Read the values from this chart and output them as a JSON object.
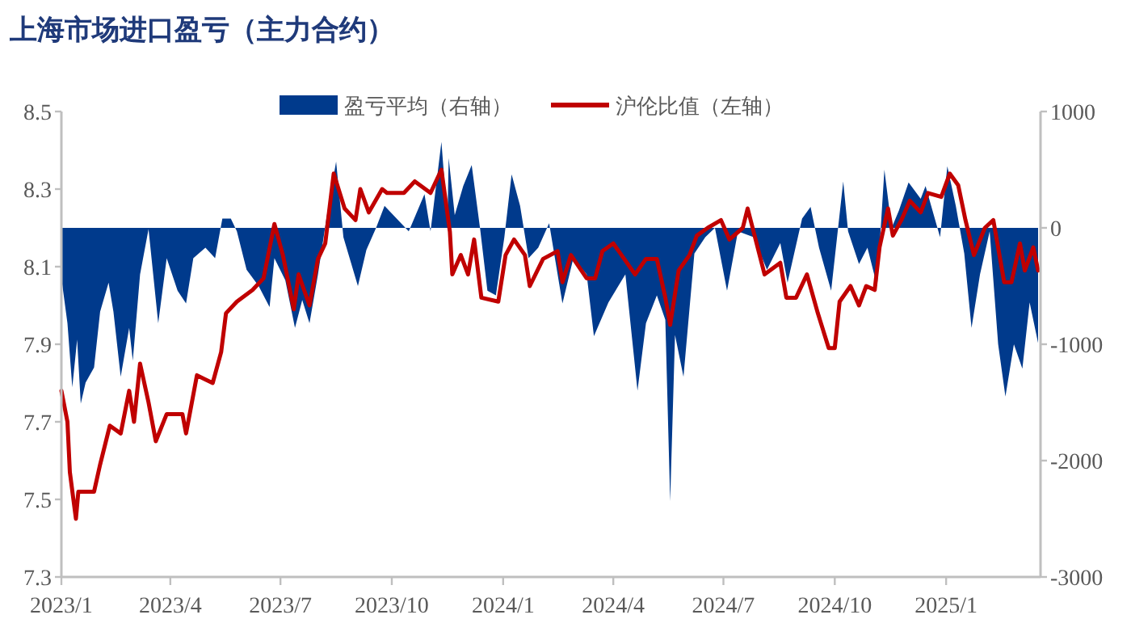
{
  "chart_data": {
    "type": "line",
    "title": "上海市场进口盈亏（主力合约）",
    "legend": "top",
    "xlim": [
      "2023-01-01",
      "2025-03-20"
    ],
    "xticks": [
      {
        "value": "2023-01-01",
        "label": "2023/1"
      },
      {
        "value": "2023-04-01",
        "label": "2023/4"
      },
      {
        "value": "2023-07-01",
        "label": "2023/7"
      },
      {
        "value": "2023-10-01",
        "label": "2023/10"
      },
      {
        "value": "2024-01-01",
        "label": "2024/1"
      },
      {
        "value": "2024-04-01",
        "label": "2024/4"
      },
      {
        "value": "2024-07-01",
        "label": "2024/7"
      },
      {
        "value": "2024-10-01",
        "label": "2024/10"
      },
      {
        "value": "2025-01-01",
        "label": "2025/1"
      }
    ],
    "ylim": [
      7.3,
      8.5
    ],
    "yticks": [
      {
        "value": 7.3,
        "label": "7.3"
      },
      {
        "value": 7.5,
        "label": "7.5"
      },
      {
        "value": 7.7,
        "label": "7.7"
      },
      {
        "value": 7.9,
        "label": "7.9"
      },
      {
        "value": 8.1,
        "label": "8.1"
      },
      {
        "value": 8.3,
        "label": "8.3"
      },
      {
        "value": 8.5,
        "label": "8.5"
      }
    ],
    "y2lim": [
      -3000,
      1000
    ],
    "y2ticks": [
      -3000,
      -2000,
      -1000,
      0,
      1000
    ],
    "series": [
      {
        "name": "盈亏平均（右轴）",
        "type": "area",
        "axis": "y2",
        "color": "#003a8c",
        "x": [
          "2023-01-01",
          "2023-01-06",
          "2023-01-10",
          "2023-01-14",
          "2023-01-17",
          "2023-01-21",
          "2023-01-28",
          "2023-02-02",
          "2023-02-09",
          "2023-02-13",
          "2023-02-19",
          "2023-02-26",
          "2023-03-01",
          "2023-03-07",
          "2023-03-14",
          "2023-03-22",
          "2023-03-29",
          "2023-04-07",
          "2023-04-14",
          "2023-04-20",
          "2023-04-30",
          "2023-05-08",
          "2023-05-14",
          "2023-05-21",
          "2023-05-26",
          "2023-06-03",
          "2023-06-13",
          "2023-06-22",
          "2023-06-26",
          "2023-07-05",
          "2023-07-13",
          "2023-07-19",
          "2023-07-25",
          "2023-08-01",
          "2023-08-09",
          "2023-08-16",
          "2023-08-22",
          "2023-09-03",
          "2023-09-10",
          "2023-09-18",
          "2023-09-25",
          "2023-10-15",
          "2023-10-28",
          "2023-11-02",
          "2023-11-11",
          "2023-11-16",
          "2023-11-17",
          "2023-11-22",
          "2023-11-29",
          "2023-12-06",
          "2023-12-13",
          "2023-12-19",
          "2023-12-26",
          "2024-01-02",
          "2024-01-08",
          "2024-01-15",
          "2024-01-22",
          "2024-01-30",
          "2024-02-08",
          "2024-02-19",
          "2024-02-28",
          "2024-03-10",
          "2024-03-16",
          "2024-03-28",
          "2024-04-11",
          "2024-04-21",
          "2024-04-28",
          "2024-05-07",
          "2024-05-14",
          "2024-05-18",
          "2024-05-22",
          "2024-05-29",
          "2024-06-07",
          "2024-06-16",
          "2024-06-24",
          "2024-07-04",
          "2024-07-13",
          "2024-07-26",
          "2024-08-06",
          "2024-08-17",
          "2024-08-23",
          "2024-09-04",
          "2024-09-11",
          "2024-09-18",
          "2024-09-28",
          "2024-10-08",
          "2024-10-12",
          "2024-10-21",
          "2024-10-28",
          "2024-11-05",
          "2024-11-11",
          "2024-11-17",
          "2024-11-23",
          "2024-12-01",
          "2024-12-11",
          "2024-12-15",
          "2024-12-27",
          "2025-01-02",
          "2025-01-09",
          "2025-01-16",
          "2025-01-22",
          "2025-01-29",
          "2025-02-06",
          "2025-02-13",
          "2025-02-19",
          "2025-02-26",
          "2025-03-05",
          "2025-03-11",
          "2025-03-18"
        ],
        "values": [
          -430,
          -820,
          -1370,
          -960,
          -1510,
          -1330,
          -1200,
          -720,
          -470,
          -720,
          -1280,
          -860,
          -1140,
          -400,
          -10,
          -820,
          -260,
          -540,
          -650,
          -260,
          -170,
          -260,
          80,
          80,
          -30,
          -360,
          -500,
          -680,
          -260,
          -450,
          -860,
          -620,
          -820,
          -400,
          150,
          570,
          -80,
          -500,
          -190,
          0,
          190,
          -30,
          290,
          -30,
          740,
          60,
          600,
          110,
          360,
          540,
          -10,
          -540,
          -580,
          -80,
          460,
          190,
          -260,
          -170,
          40,
          -650,
          -260,
          -400,
          -930,
          -640,
          -400,
          -1400,
          -820,
          -580,
          -790,
          -2350,
          -920,
          -1280,
          -220,
          -80,
          0,
          -540,
          -30,
          -80,
          -360,
          -130,
          -470,
          80,
          180,
          -170,
          -540,
          400,
          -30,
          -310,
          -170,
          -500,
          500,
          0,
          150,
          390,
          250,
          360,
          -80,
          530,
          190,
          -220,
          -860,
          -400,
          -30,
          -1000,
          -1450,
          -1000,
          -1210,
          -640,
          -990
        ]
      },
      {
        "name": "沪伦比值（左轴）",
        "type": "line",
        "color": "#c00000",
        "x": [
          "2023-01-01",
          "2023-01-06",
          "2023-01-08",
          "2023-01-13",
          "2023-01-15",
          "2023-01-28",
          "2023-02-02",
          "2023-02-10",
          "2023-02-19",
          "2023-02-26",
          "2023-03-02",
          "2023-03-07",
          "2023-03-14",
          "2023-03-20",
          "2023-03-29",
          "2023-04-11",
          "2023-04-14",
          "2023-04-23",
          "2023-05-06",
          "2023-05-13",
          "2023-05-17",
          "2023-05-26",
          "2023-06-08",
          "2023-06-17",
          "2023-06-26",
          "2023-07-03",
          "2023-07-12",
          "2023-07-16",
          "2023-07-25",
          "2023-08-01",
          "2023-08-07",
          "2023-08-14",
          "2023-08-23",
          "2023-09-01",
          "2023-09-05",
          "2023-09-12",
          "2023-09-23",
          "2023-09-27",
          "2023-10-11",
          "2023-10-20",
          "2023-11-02",
          "2023-11-11",
          "2023-11-18",
          "2023-11-20",
          "2023-11-27",
          "2023-12-03",
          "2023-12-08",
          "2023-12-14",
          "2023-12-28",
          "2024-01-03",
          "2024-01-10",
          "2024-01-19",
          "2024-01-23",
          "2024-02-03",
          "2024-02-15",
          "2024-02-19",
          "2024-02-26",
          "2024-03-10",
          "2024-03-17",
          "2024-03-23",
          "2024-04-01",
          "2024-04-10",
          "2024-04-19",
          "2024-04-28",
          "2024-05-07",
          "2024-05-14",
          "2024-05-18",
          "2024-05-25",
          "2024-06-03",
          "2024-06-09",
          "2024-06-18",
          "2024-06-29",
          "2024-07-06",
          "2024-07-17",
          "2024-07-21",
          "2024-08-04",
          "2024-08-17",
          "2024-08-22",
          "2024-08-30",
          "2024-09-08",
          "2024-09-17",
          "2024-09-26",
          "2024-10-01",
          "2024-10-05",
          "2024-10-14",
          "2024-10-21",
          "2024-10-27",
          "2024-11-03",
          "2024-11-07",
          "2024-11-14",
          "2024-11-18",
          "2024-11-25",
          "2024-12-02",
          "2024-12-11",
          "2024-12-17",
          "2024-12-28",
          "2025-01-04",
          "2025-01-11",
          "2025-01-17",
          "2025-01-24",
          "2025-02-02",
          "2025-02-09",
          "2025-02-18",
          "2025-02-24",
          "2025-03-03",
          "2025-03-07",
          "2025-03-14",
          "2025-03-18"
        ],
        "values": [
          7.78,
          7.7,
          7.57,
          7.45,
          7.52,
          7.52,
          7.59,
          7.69,
          7.67,
          7.78,
          7.7,
          7.85,
          7.75,
          7.65,
          7.72,
          7.72,
          7.67,
          7.82,
          7.8,
          7.88,
          7.98,
          8.01,
          8.04,
          8.07,
          8.21,
          8.13,
          7.99,
          8.08,
          8.0,
          8.12,
          8.16,
          8.34,
          8.25,
          8.22,
          8.3,
          8.24,
          8.3,
          8.29,
          8.29,
          8.32,
          8.29,
          8.35,
          8.19,
          8.08,
          8.13,
          8.08,
          8.17,
          8.02,
          8.01,
          8.13,
          8.17,
          8.13,
          8.05,
          8.12,
          8.14,
          8.06,
          8.13,
          8.07,
          8.07,
          8.14,
          8.16,
          8.12,
          8.08,
          8.12,
          8.12,
          8.02,
          7.95,
          8.09,
          8.13,
          8.18,
          8.2,
          8.22,
          8.17,
          8.2,
          8.25,
          8.08,
          8.11,
          8.02,
          8.02,
          8.08,
          7.98,
          7.89,
          7.89,
          8.01,
          8.05,
          8.0,
          8.05,
          8.04,
          8.15,
          8.25,
          8.18,
          8.22,
          8.27,
          8.24,
          8.29,
          8.28,
          8.34,
          8.31,
          8.22,
          8.13,
          8.2,
          8.22,
          8.06,
          8.06,
          8.16,
          8.09,
          8.15,
          8.09
        ]
      }
    ]
  }
}
